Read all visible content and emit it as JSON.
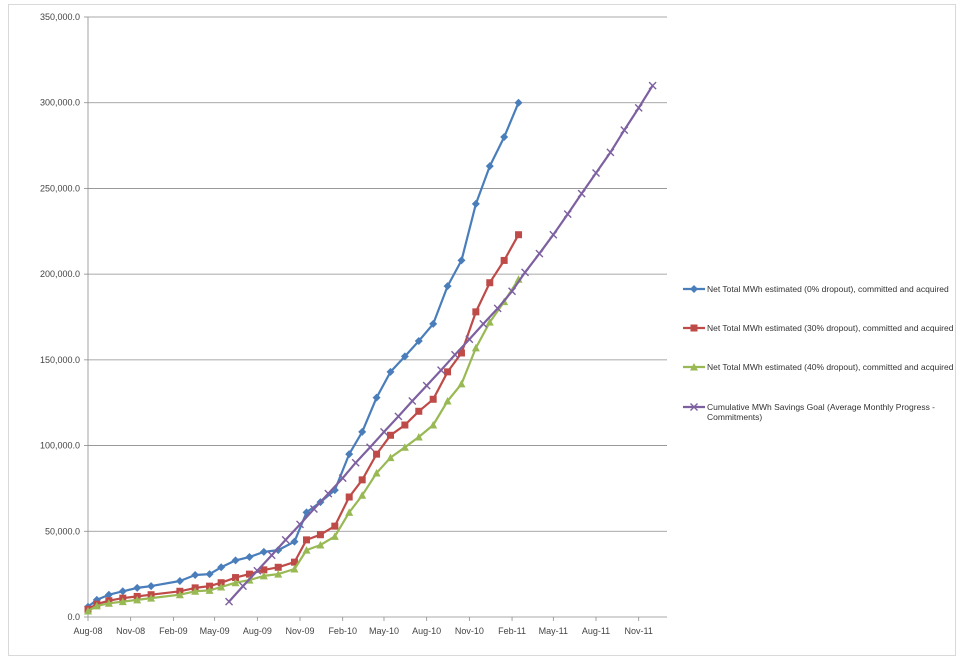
{
  "chart_data": {
    "type": "line",
    "title": "",
    "xlabel": "",
    "ylabel": "",
    "ylim": [
      0,
      350000
    ],
    "yticks": [
      0,
      50000,
      100000,
      150000,
      200000,
      250000,
      300000,
      350000
    ],
    "ytick_labels": [
      "0.0",
      "50,000.0",
      "100,000.0",
      "150,000.0",
      "200,000.0",
      "250,000.0",
      "300,000.0",
      "350,000.0"
    ],
    "xlim": [
      "2008-08",
      "2012-01"
    ],
    "xticks": [
      "2008-08",
      "2008-11",
      "2009-02",
      "2009-05",
      "2009-08",
      "2009-11",
      "2010-02",
      "2010-05",
      "2010-08",
      "2010-11",
      "2011-02",
      "2011-05",
      "2011-08",
      "2011-11"
    ],
    "xtick_labels": [
      "Aug-08",
      "Nov-08",
      "Feb-09",
      "May-09",
      "Aug-09",
      "Nov-09",
      "Feb-10",
      "May-10",
      "Aug-10",
      "Nov-10",
      "Feb-11",
      "May-11",
      "Aug-11",
      "Nov-11"
    ],
    "grid": "horizontal",
    "legend_position": "right",
    "series": [
      {
        "name": "Net Total MWh estimated (0% dropout), committed and acquired",
        "color": "#4a7ebb",
        "marker": "diamond",
        "points": [
          [
            "2008-08-01",
            6000
          ],
          [
            "2008-08-20",
            10000
          ],
          [
            "2008-09-15",
            13000
          ],
          [
            "2008-10-15",
            15000
          ],
          [
            "2008-11-15",
            17000
          ],
          [
            "2008-12-15",
            18000
          ],
          [
            "2009-02-15",
            21000
          ],
          [
            "2009-03-20",
            24500
          ],
          [
            "2009-04-20",
            25000
          ],
          [
            "2009-05-15",
            29000
          ],
          [
            "2009-06-15",
            33000
          ],
          [
            "2009-07-15",
            35000
          ],
          [
            "2009-08-15",
            38000
          ],
          [
            "2009-09-15",
            39000
          ],
          [
            "2009-10-20",
            44000
          ],
          [
            "2009-11-15",
            61000
          ],
          [
            "2009-12-15",
            67000
          ],
          [
            "2010-01-15",
            74000
          ],
          [
            "2010-02-15",
            95000
          ],
          [
            "2010-03-15",
            108000
          ],
          [
            "2010-04-15",
            128000
          ],
          [
            "2010-05-15",
            143000
          ],
          [
            "2010-06-15",
            152000
          ],
          [
            "2010-07-15",
            161000
          ],
          [
            "2010-08-15",
            171000
          ],
          [
            "2010-09-15",
            193000
          ],
          [
            "2010-10-15",
            208000
          ],
          [
            "2010-11-15",
            241000
          ],
          [
            "2010-12-15",
            263000
          ],
          [
            "2011-01-15",
            280000
          ],
          [
            "2011-02-15",
            300000
          ]
        ]
      },
      {
        "name": "Net Total MWh estimated (30% dropout), committed and acquired",
        "color": "#be4b48",
        "marker": "square",
        "points": [
          [
            "2008-08-01",
            4500
          ],
          [
            "2008-08-20",
            7500
          ],
          [
            "2008-09-15",
            9500
          ],
          [
            "2008-10-15",
            11000
          ],
          [
            "2008-11-15",
            12000
          ],
          [
            "2008-12-15",
            13000
          ],
          [
            "2009-02-15",
            15000
          ],
          [
            "2009-03-20",
            17000
          ],
          [
            "2009-04-20",
            18000
          ],
          [
            "2009-05-15",
            20000
          ],
          [
            "2009-06-15",
            23000
          ],
          [
            "2009-07-15",
            25000
          ],
          [
            "2009-08-15",
            27500
          ],
          [
            "2009-09-15",
            29000
          ],
          [
            "2009-10-20",
            32000
          ],
          [
            "2009-11-15",
            45000
          ],
          [
            "2009-12-15",
            48000
          ],
          [
            "2010-01-15",
            53000
          ],
          [
            "2010-02-15",
            70000
          ],
          [
            "2010-03-15",
            80000
          ],
          [
            "2010-04-15",
            95000
          ],
          [
            "2010-05-15",
            106000
          ],
          [
            "2010-06-15",
            112000
          ],
          [
            "2010-07-15",
            120000
          ],
          [
            "2010-08-15",
            127000
          ],
          [
            "2010-09-15",
            143000
          ],
          [
            "2010-10-15",
            154000
          ],
          [
            "2010-11-15",
            178000
          ],
          [
            "2010-12-15",
            195000
          ],
          [
            "2011-01-15",
            208000
          ],
          [
            "2011-02-15",
            223000
          ]
        ]
      },
      {
        "name": "Net Total MWh estimated (40% dropout), committed and acquired",
        "color": "#98b954",
        "marker": "triangle",
        "points": [
          [
            "2008-08-01",
            3500
          ],
          [
            "2008-08-20",
            6500
          ],
          [
            "2008-09-15",
            8000
          ],
          [
            "2008-10-15",
            9000
          ],
          [
            "2008-11-15",
            10000
          ],
          [
            "2008-12-15",
            11000
          ],
          [
            "2009-02-15",
            13000
          ],
          [
            "2009-03-20",
            15000
          ],
          [
            "2009-04-20",
            15500
          ],
          [
            "2009-05-15",
            17500
          ],
          [
            "2009-06-15",
            20000
          ],
          [
            "2009-07-15",
            21500
          ],
          [
            "2009-08-15",
            24000
          ],
          [
            "2009-09-15",
            25000
          ],
          [
            "2009-10-20",
            28000
          ],
          [
            "2009-11-15",
            39000
          ],
          [
            "2009-12-15",
            42000
          ],
          [
            "2010-01-15",
            47000
          ],
          [
            "2010-02-15",
            61000
          ],
          [
            "2010-03-15",
            71000
          ],
          [
            "2010-04-15",
            84000
          ],
          [
            "2010-05-15",
            93000
          ],
          [
            "2010-06-15",
            99000
          ],
          [
            "2010-07-15",
            105000
          ],
          [
            "2010-08-15",
            112000
          ],
          [
            "2010-09-15",
            126000
          ],
          [
            "2010-10-15",
            136000
          ],
          [
            "2010-11-15",
            157000
          ],
          [
            "2010-12-15",
            172000
          ],
          [
            "2011-01-15",
            184000
          ],
          [
            "2011-02-15",
            197000
          ]
        ]
      },
      {
        "name": "Cumulative MWh Savings Goal (Average Monthly Progress - Commitments)",
        "color": "#7d60a0",
        "marker": "x",
        "points": [
          [
            "2009-06-01",
            9000
          ],
          [
            "2009-07-01",
            18000
          ],
          [
            "2009-08-01",
            27000
          ],
          [
            "2009-09-01",
            36000
          ],
          [
            "2009-10-01",
            45000
          ],
          [
            "2009-11-01",
            54000
          ],
          [
            "2009-12-01",
            63000
          ],
          [
            "2010-01-01",
            72000
          ],
          [
            "2010-02-01",
            81000
          ],
          [
            "2010-03-01",
            90000
          ],
          [
            "2010-04-01",
            99000
          ],
          [
            "2010-05-01",
            108000
          ],
          [
            "2010-06-01",
            117000
          ],
          [
            "2010-07-01",
            126000
          ],
          [
            "2010-08-01",
            135000
          ],
          [
            "2010-09-01",
            144000
          ],
          [
            "2010-10-01",
            153000
          ],
          [
            "2010-11-01",
            162000
          ],
          [
            "2010-12-01",
            171000
          ],
          [
            "2011-01-01",
            180000
          ],
          [
            "2011-02-01",
            190000
          ],
          [
            "2011-03-01",
            201000
          ],
          [
            "2011-04-01",
            212000
          ],
          [
            "2011-05-01",
            223000
          ],
          [
            "2011-06-01",
            235000
          ],
          [
            "2011-07-01",
            247000
          ],
          [
            "2011-08-01",
            259000
          ],
          [
            "2011-09-01",
            271000
          ],
          [
            "2011-10-01",
            284000
          ],
          [
            "2011-11-01",
            297000
          ],
          [
            "2011-12-01",
            310000
          ]
        ]
      }
    ]
  }
}
